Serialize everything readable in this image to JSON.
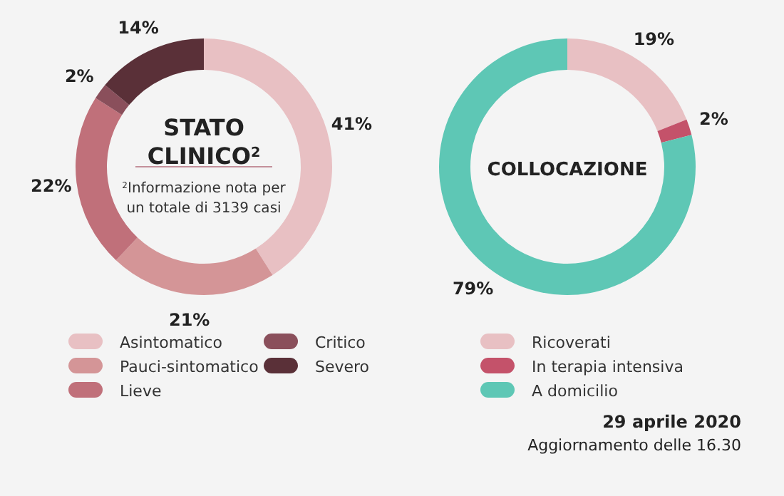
{
  "chart_data": [
    {
      "type": "donut",
      "title": "STATO CLINICO$^{2}$",
      "categories": [
        "Asintomatico",
        "Pauci-sintomatico",
        "Lieve",
        "Critico",
        "Severo"
      ],
      "values": [
        41,
        21,
        22,
        2,
        14
      ],
      "colors": [
        "#e8c0c3",
        "#d49597",
        "#c0707a",
        "#8a4f5b",
        "#5a3038"
      ],
      "value_labels": [
        "41%",
        "21%",
        "22%",
        "2%",
        "14%"
      ],
      "legend": "bottom",
      "annotations": [
        "$^{2}$Informazione nota per un totale di 3139 casi"
      ]
    },
    {
      "type": "donut",
      "title": "COLLOCAZIONE",
      "categories": [
        "Ricoverati",
        "In terapia intensiva",
        "A domicilio"
      ],
      "values": [
        19,
        2,
        79
      ],
      "colors": [
        "#e8c0c3",
        "#c4526a",
        "#5ec7b5"
      ],
      "value_labels": [
        "19%",
        "2%",
        "79%"
      ],
      "legend": "bottom",
      "annotations": [
        "29 aprile 2020",
        "Aggiornamento delle 16.30"
      ]
    }
  ]
}
